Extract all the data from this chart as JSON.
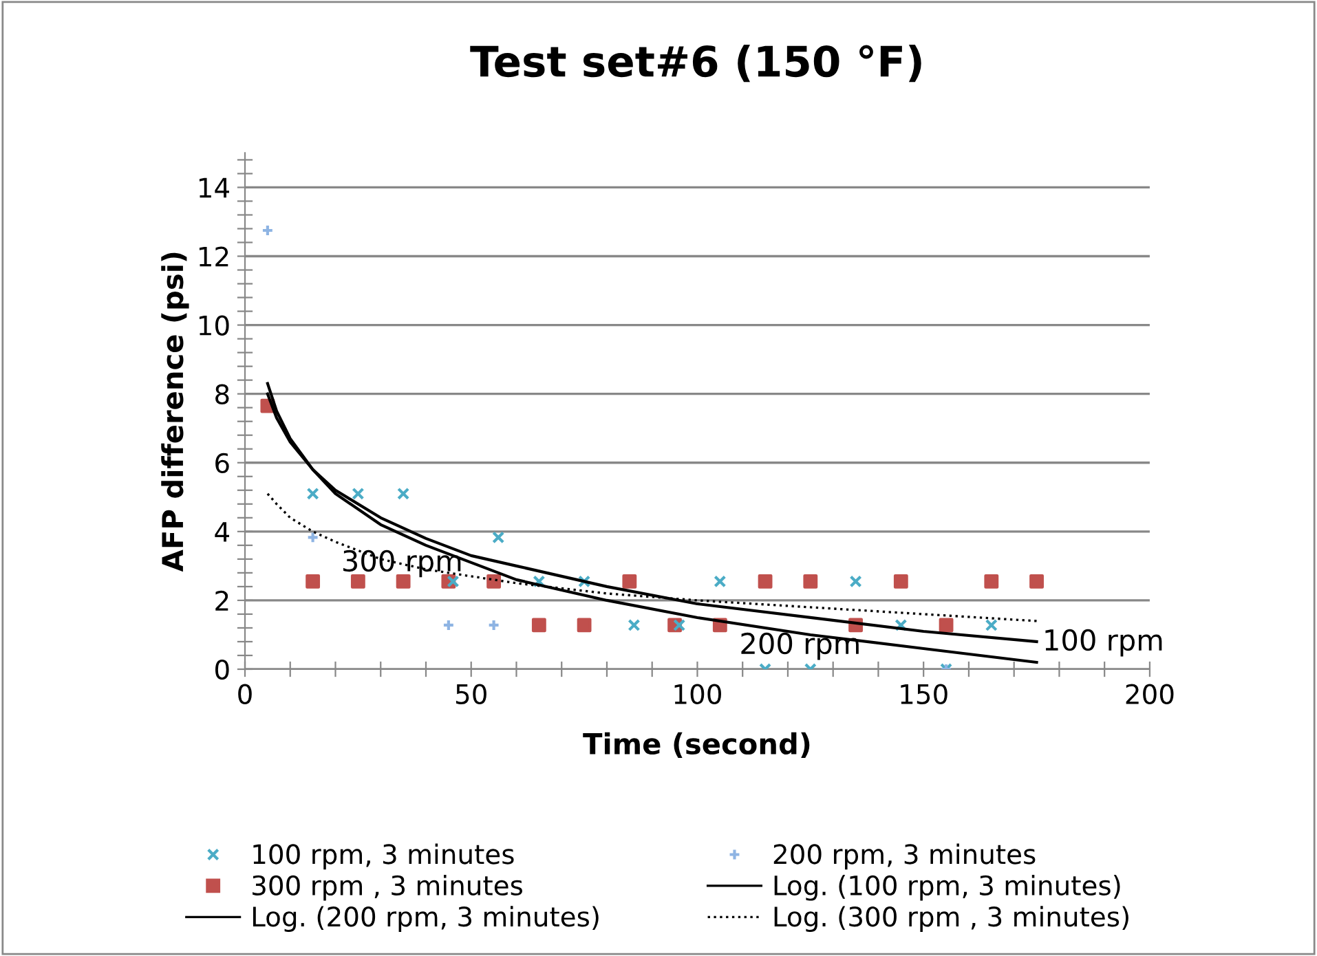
{
  "chart_data": {
    "type": "scatter",
    "title": "Test set#6 (150 °F)",
    "xlabel": "Time (second)",
    "ylabel": "AFP difference (psi)",
    "xlim": [
      0,
      200
    ],
    "ylim": [
      0,
      15
    ],
    "xticks": [
      0,
      {
        "value": 10,
        "label": null
      },
      {
        "value": 20,
        "label": null
      },
      {
        "value": 30,
        "label": null
      },
      {
        "value": 40,
        "label": null
      },
      50,
      {
        "value": 60,
        "label": null
      },
      {
        "value": 70,
        "label": null
      },
      {
        "value": 80,
        "label": null
      },
      {
        "value": 90,
        "label": null
      },
      100,
      {
        "value": 110,
        "label": null
      },
      {
        "value": 120,
        "label": null
      },
      {
        "value": 130,
        "label": null
      },
      {
        "value": 140,
        "label": null
      },
      150,
      {
        "value": 160,
        "label": null
      },
      {
        "value": 170,
        "label": null
      },
      {
        "value": 180,
        "label": null
      },
      {
        "value": 190,
        "label": null
      },
      200
    ],
    "yticks": [
      0,
      {
        "value": 0.4,
        "label": null
      },
      {
        "value": 0.8,
        "label": null
      },
      {
        "value": 1.2,
        "label": null
      },
      {
        "value": 1.6,
        "label": null
      },
      2,
      {
        "value": 2.4,
        "label": null
      },
      {
        "value": 2.8,
        "label": null
      },
      {
        "value": 3.2,
        "label": null
      },
      {
        "value": 3.6,
        "label": null
      },
      4,
      {
        "value": 4.4,
        "label": null
      },
      {
        "value": 4.8,
        "label": null
      },
      {
        "value": 5.2,
        "label": null
      },
      {
        "value": 5.6,
        "label": null
      },
      6,
      {
        "value": 6.4,
        "label": null
      },
      {
        "value": 6.8,
        "label": null
      },
      {
        "value": 7.2,
        "label": null
      },
      {
        "value": 7.6,
        "label": null
      },
      8,
      {
        "value": 8.4,
        "label": null
      },
      {
        "value": 8.8,
        "label": null
      },
      {
        "value": 9.2,
        "label": null
      },
      {
        "value": 9.6,
        "label": null
      },
      10,
      {
        "value": 10.4,
        "label": null
      },
      {
        "value": 10.8,
        "label": null
      },
      {
        "value": 11.2,
        "label": null
      },
      {
        "value": 11.6,
        "label": null
      },
      12,
      {
        "value": 12.4,
        "label": null
      },
      {
        "value": 12.8,
        "label": null
      },
      {
        "value": 13.2,
        "label": null
      },
      {
        "value": 13.6,
        "label": null
      },
      14,
      {
        "value": 14.4,
        "label": null
      },
      {
        "value": 14.8,
        "label": null
      }
    ],
    "grid": "y",
    "legend": "bottom",
    "series": [
      {
        "name": "100 rpm, 3 minutes",
        "marker": "cross",
        "color": "#4bacc6",
        "x": [
          15,
          25,
          35,
          46,
          56,
          65,
          75,
          86,
          96,
          105,
          115,
          125,
          135,
          145,
          155,
          165
        ],
        "values": [
          5.1,
          5.1,
          5.1,
          2.55,
          3.83,
          2.55,
          2.55,
          1.28,
          1.28,
          2.55,
          0,
          0,
          2.55,
          1.28,
          0,
          1.28
        ]
      },
      {
        "name": "200 rpm, 3 minutes",
        "marker": "plus",
        "color": "#8eb4e3",
        "x": [
          5,
          15,
          45,
          55,
          155
        ],
        "values": [
          12.75,
          3.83,
          1.28,
          1.28,
          0
        ]
      },
      {
        "name": "300 rpm , 3 minutes",
        "marker": "square",
        "color": "#c0504d",
        "x": [
          5,
          15,
          25,
          35,
          45,
          55,
          65,
          75,
          85,
          95,
          105,
          115,
          125,
          135,
          145,
          155,
          165,
          175
        ],
        "values": [
          7.65,
          2.55,
          2.55,
          2.55,
          2.55,
          2.55,
          1.28,
          1.28,
          2.55,
          1.28,
          1.28,
          2.55,
          2.55,
          1.28,
          2.55,
          1.28,
          2.55,
          2.55
        ]
      },
      {
        "name": "Log. (100 rpm, 3 minutes)",
        "type": "line",
        "line_style": "solid",
        "color": "#000000",
        "x": [
          5,
          7,
          10,
          15,
          20,
          30,
          40,
          50,
          60,
          80,
          100,
          125,
          150,
          175
        ],
        "values": [
          8.0,
          7.3,
          6.6,
          5.8,
          5.2,
          4.4,
          3.8,
          3.3,
          3.0,
          2.4,
          1.9,
          1.5,
          1.1,
          0.8
        ]
      },
      {
        "name": "Log. (200 rpm, 3 minutes)",
        "type": "line",
        "line_style": "solid",
        "color": "#000000",
        "x": [
          5,
          7,
          10,
          15,
          20,
          30,
          40,
          50,
          60,
          80,
          100,
          125,
          150,
          175
        ],
        "values": [
          8.3,
          7.5,
          6.7,
          5.8,
          5.1,
          4.2,
          3.6,
          3.1,
          2.6,
          2.0,
          1.5,
          1.0,
          0.6,
          0.2
        ]
      },
      {
        "name": "Log. (300 rpm , 3 minutes)",
        "type": "line",
        "line_style": "dotted",
        "color": "#000000",
        "x": [
          5,
          7,
          10,
          15,
          20,
          30,
          40,
          50,
          60,
          80,
          100,
          125,
          150,
          175
        ],
        "values": [
          5.1,
          4.8,
          4.4,
          4.0,
          3.7,
          3.2,
          2.9,
          2.7,
          2.5,
          2.2,
          2.0,
          1.8,
          1.6,
          1.4
        ]
      }
    ],
    "annotations": [
      {
        "text": "300 rpm",
        "x": 20,
        "y": 3.7
      },
      {
        "text": "100 rpm",
        "x": 175,
        "y": 1.4
      },
      {
        "text": "200 rpm",
        "x": 108,
        "y": 1.3
      }
    ]
  }
}
